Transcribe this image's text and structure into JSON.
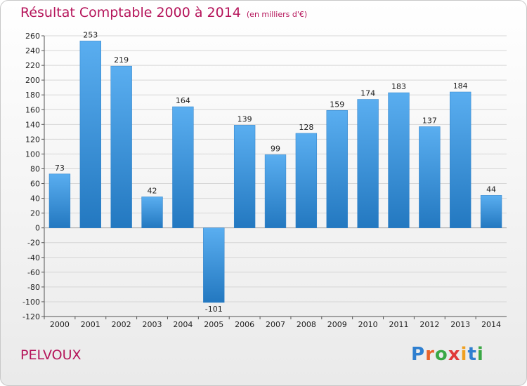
{
  "chart_data": {
    "type": "bar",
    "title": "Résultat Comptable 2000 à 2014",
    "subtitle": "(en milliers d'€)",
    "categories": [
      "2000",
      "2001",
      "2002",
      "2003",
      "2004",
      "2005",
      "2006",
      "2007",
      "2008",
      "2009",
      "2010",
      "2011",
      "2012",
      "2013",
      "2014"
    ],
    "values": [
      73,
      253,
      219,
      42,
      164,
      -101,
      139,
      99,
      128,
      159,
      174,
      183,
      137,
      184,
      44
    ],
    "ylim": [
      -120,
      260
    ],
    "yticks": [
      260,
      240,
      220,
      200,
      180,
      160,
      140,
      120,
      100,
      80,
      60,
      40,
      20,
      0,
      -20,
      -40,
      -60,
      -80,
      -100,
      -120
    ],
    "grid": true,
    "legend": "none",
    "bar_color": "#3a8fd8"
  },
  "footer": {
    "commune": "PELVOUX",
    "logo": "Proxiti"
  }
}
